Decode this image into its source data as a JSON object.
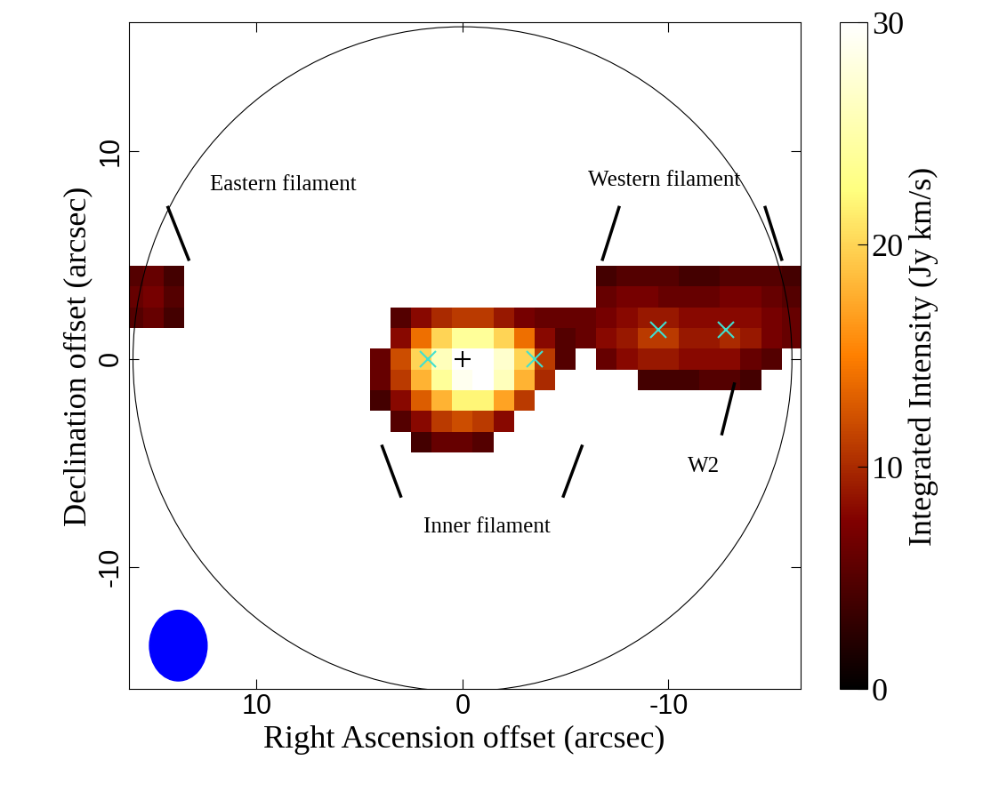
{
  "chart_data": {
    "type": "heatmap",
    "color": "afmhot",
    "xlabel": "Right Ascension offset (arcsec)",
    "ylabel": "Declination offset (arcsec)",
    "xlim": [
      16.2,
      -16.4
    ],
    "ylim": [
      -15.9,
      16.2
    ],
    "xticks": [
      10,
      0,
      -10
    ],
    "yticks": [
      -10,
      0,
      10
    ],
    "x": [
      16,
      15,
      14,
      13,
      12,
      11,
      10,
      9,
      8,
      7,
      6,
      5,
      4,
      3,
      2,
      1,
      0,
      -1,
      -2,
      -3,
      -4,
      -5,
      -6,
      -7,
      -8,
      -9,
      -10,
      -11,
      -12,
      -13,
      -14,
      -15,
      -16
    ],
    "y": [
      -5,
      -4,
      -3,
      -2,
      -1,
      0,
      1,
      2,
      3,
      4,
      5
    ],
    "cells": [
      [
        null,
        null,
        null,
        null,
        null,
        null,
        null,
        null,
        null,
        null,
        null,
        null,
        null,
        null,
        null,
        null,
        null,
        null,
        null,
        null,
        null,
        null,
        null,
        null,
        null,
        null,
        null,
        null,
        null,
        null,
        null,
        null,
        null
      ],
      [
        null,
        null,
        null,
        null,
        null,
        null,
        null,
        null,
        null,
        null,
        null,
        null,
        null,
        null,
        4,
        6,
        6,
        5,
        null,
        null,
        null,
        null,
        null,
        null,
        null,
        null,
        null,
        null,
        null,
        null,
        null,
        null,
        null
      ],
      [
        null,
        null,
        null,
        null,
        null,
        null,
        null,
        null,
        null,
        null,
        null,
        null,
        null,
        5,
        8,
        11,
        12,
        11,
        8,
        null,
        null,
        null,
        null,
        null,
        null,
        null,
        null,
        null,
        null,
        null,
        null,
        null,
        null
      ],
      [
        null,
        null,
        null,
        null,
        null,
        null,
        null,
        null,
        null,
        null,
        null,
        null,
        4,
        8,
        13,
        18,
        22,
        22,
        17,
        11,
        null,
        null,
        null,
        null,
        null,
        null,
        null,
        null,
        null,
        null,
        null,
        null,
        null
      ],
      [
        null,
        null,
        null,
        null,
        null,
        null,
        null,
        null,
        null,
        null,
        null,
        null,
        6,
        11,
        18,
        24,
        29,
        30,
        26,
        18,
        10,
        null,
        null,
        null,
        null,
        4,
        4,
        4,
        5,
        5,
        4,
        null,
        null
      ],
      [
        null,
        null,
        null,
        null,
        null,
        null,
        null,
        null,
        null,
        null,
        null,
        null,
        6,
        12,
        20,
        26,
        30,
        30,
        27,
        20,
        11,
        5,
        null,
        6,
        8,
        9,
        9,
        8,
        8,
        8,
        6,
        5,
        null
      ],
      [
        null,
        null,
        null,
        null,
        null,
        null,
        null,
        null,
        null,
        null,
        null,
        null,
        null,
        8,
        14,
        20,
        24,
        24,
        20,
        14,
        8,
        5,
        6,
        8,
        9,
        11,
        11,
        9,
        9,
        10,
        9,
        7,
        6
      ],
      [
        5,
        6,
        4,
        null,
        null,
        null,
        null,
        null,
        null,
        null,
        null,
        null,
        null,
        5,
        8,
        10,
        11,
        11,
        9,
        7,
        6,
        6,
        6,
        7,
        8,
        9,
        9,
        8,
        8,
        8,
        8,
        7,
        6
      ],
      [
        6,
        7,
        5,
        null,
        null,
        null,
        null,
        null,
        null,
        null,
        null,
        null,
        null,
        null,
        null,
        null,
        null,
        null,
        null,
        null,
        null,
        null,
        null,
        6,
        7,
        7,
        6,
        6,
        6,
        7,
        7,
        6,
        5
      ],
      [
        5,
        6,
        4,
        null,
        null,
        null,
        null,
        null,
        null,
        null,
        null,
        null,
        null,
        null,
        null,
        null,
        null,
        null,
        null,
        null,
        null,
        null,
        null,
        4,
        5,
        5,
        5,
        4,
        4,
        5,
        5,
        5,
        4
      ],
      [
        null,
        null,
        null,
        null,
        null,
        null,
        null,
        null,
        null,
        null,
        null,
        null,
        null,
        null,
        null,
        null,
        null,
        null,
        null,
        null,
        null,
        null,
        null,
        null,
        null,
        null,
        null,
        null,
        null,
        null,
        null,
        null,
        null
      ]
    ],
    "colorbar": {
      "range": [
        0,
        30
      ],
      "ticks": [
        0,
        10,
        20,
        30
      ],
      "label": "Integrated Intensity (Jy km/s)"
    },
    "markers": [
      {
        "x": 0,
        "y": 0,
        "marker": "+",
        "color": "#000000"
      },
      {
        "x": 1.7,
        "y": 0,
        "marker": "x",
        "color": "#40e0d0"
      },
      {
        "x": -3.5,
        "y": 0,
        "marker": "x",
        "color": "#40e0d0"
      },
      {
        "x": -9.5,
        "y": 1.4,
        "marker": "x",
        "color": "#40e0d0"
      },
      {
        "x": -12.8,
        "y": 1.4,
        "marker": "x",
        "color": "#40e0d0"
      }
    ],
    "field_radius": 16,
    "beam": {
      "major": 3.4,
      "minor": 2.8
    },
    "annotations": [
      "Eastern filament",
      "Western filament",
      "Inner filament",
      "W2"
    ]
  }
}
